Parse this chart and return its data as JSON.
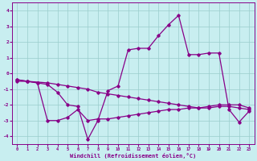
{
  "xlabel": "Windchill (Refroidissement éolien,°C)",
  "bg_color": "#c8eef0",
  "line_color": "#880088",
  "grid_color": "#99cccc",
  "xlim": [
    -0.5,
    23.5
  ],
  "ylim": [
    -4.5,
    4.5
  ],
  "yticks": [
    -4,
    -3,
    -2,
    -1,
    0,
    1,
    2,
    3,
    4
  ],
  "xticks": [
    0,
    1,
    2,
    3,
    4,
    5,
    6,
    7,
    8,
    9,
    10,
    11,
    12,
    13,
    14,
    15,
    16,
    17,
    18,
    19,
    20,
    21,
    22,
    23
  ],
  "series1_x": [
    0,
    1,
    2,
    3,
    4,
    5,
    6,
    7,
    8,
    9,
    10,
    11,
    12,
    13,
    14,
    15,
    16,
    17,
    18,
    19,
    20,
    21,
    22,
    23
  ],
  "series1_y": [
    -0.4,
    -0.5,
    -0.6,
    -0.7,
    -1.2,
    -2.0,
    -2.1,
    -4.2,
    -3.0,
    -1.1,
    -0.8,
    1.5,
    1.6,
    1.6,
    2.4,
    3.1,
    3.7,
    1.2,
    1.2,
    1.3,
    1.3,
    -2.3,
    -3.1,
    -2.4
  ],
  "series2_x": [
    0,
    1,
    2,
    3,
    4,
    5,
    6,
    7,
    8,
    9,
    10,
    11,
    12,
    13,
    14,
    15,
    16,
    17,
    18,
    19,
    20,
    21,
    22,
    23
  ],
  "series2_y": [
    -0.5,
    -0.5,
    -0.6,
    -3.0,
    -3.0,
    -2.8,
    -2.3,
    -3.0,
    -2.9,
    -2.9,
    -2.8,
    -2.7,
    -2.6,
    -2.5,
    -2.4,
    -2.3,
    -2.3,
    -2.2,
    -2.2,
    -2.1,
    -2.0,
    -2.0,
    -2.0,
    -2.2
  ],
  "series3_x": [
    0,
    1,
    3,
    4,
    5,
    6,
    7,
    8,
    9,
    10,
    11,
    12,
    13,
    14,
    15,
    16,
    17,
    18,
    19,
    20,
    21,
    22,
    23
  ],
  "series3_y": [
    -0.4,
    -0.5,
    -0.6,
    -0.7,
    -0.8,
    -0.9,
    -1.0,
    -1.2,
    -1.3,
    -1.4,
    -1.5,
    -1.6,
    -1.7,
    -1.8,
    -1.9,
    -2.0,
    -2.1,
    -2.2,
    -2.2,
    -2.1,
    -2.1,
    -2.2,
    -2.3
  ]
}
